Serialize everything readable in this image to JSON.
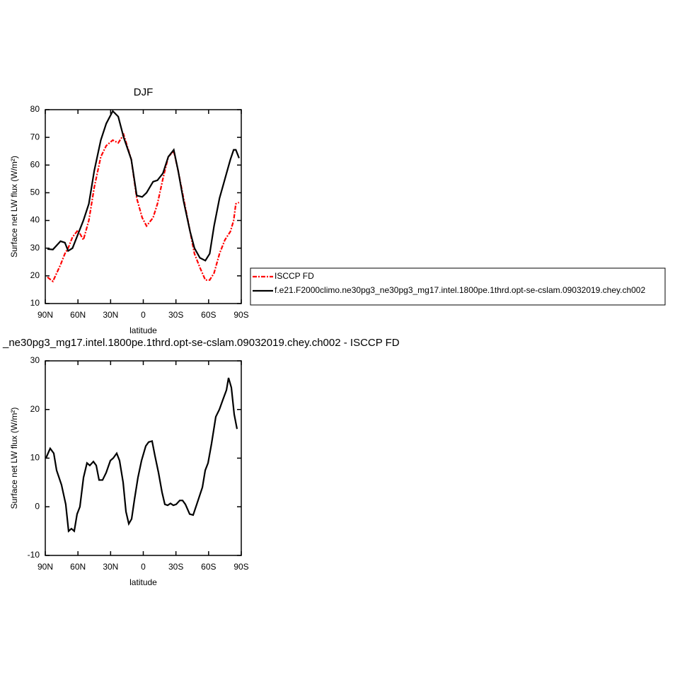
{
  "chart_data": [
    {
      "type": "line",
      "title": "DJF",
      "xlabel": "latitude",
      "ylabel": "Surface net LW flux (W/m²)",
      "xlim": [
        90,
        -90
      ],
      "ylim": [
        10,
        80
      ],
      "xticks": [
        {
          "value": 90,
          "label": "90N"
        },
        {
          "value": 60,
          "label": "60N"
        },
        {
          "value": 30,
          "label": "30N"
        },
        0,
        {
          "value": -30,
          "label": "30S"
        },
        {
          "value": -60,
          "label": "60S"
        },
        {
          "value": -90,
          "label": "90S"
        }
      ],
      "yticks": [
        10,
        20,
        30,
        40,
        50,
        60,
        70,
        80
      ],
      "legend": "right",
      "x": [
        88,
        83,
        76,
        72,
        69,
        65,
        60,
        55,
        50,
        45,
        39,
        34,
        28,
        23,
        18,
        11,
        6,
        1,
        -3,
        -9,
        -13,
        -18,
        -23,
        -28,
        -32,
        -37,
        -43,
        -47,
        -52,
        -57,
        -61,
        -65,
        -70,
        -75,
        -80,
        -83,
        -85,
        -88
      ],
      "series": [
        {
          "name": "ISCCP FD",
          "color": "#ff0000",
          "style": "dashed",
          "values": [
            19.5,
            18,
            24,
            28,
            30,
            34,
            36.5,
            33,
            40,
            52,
            63,
            67,
            69,
            68,
            71,
            62,
            48,
            41,
            38,
            41,
            46,
            55,
            63,
            65,
            58,
            48,
            36,
            28,
            23,
            18.5,
            18.5,
            21,
            28,
            33,
            36,
            40,
            46,
            46.5
          ]
        },
        {
          "name": "f.e21.F2000climo.ne30pg3_ne30pg3_mg17.intel.1800pe.1thrd.opt-se-cslam.09032019.chey.ch002",
          "color": "#000000",
          "style": "solid",
          "values": [
            29.7,
            29.5,
            32.5,
            32,
            29,
            30,
            35,
            40,
            46,
            58,
            69,
            75,
            79.5,
            77.5,
            70,
            62,
            49,
            48.5,
            50,
            54,
            54.5,
            57,
            63,
            65.5,
            58,
            47,
            36,
            30,
            26.5,
            25.5,
            28,
            38,
            48,
            55,
            62,
            65.5,
            65.5,
            62.5
          ]
        }
      ]
    },
    {
      "type": "line",
      "title": "_ne30pg3_mg17.intel.1800pe.1thrd.opt-se-cslam.09032019.chey.ch002 - ISCCP FD",
      "xlabel": "latitude",
      "ylabel": "Surface net LW flux (W/m²)",
      "xlim": [
        90,
        -90
      ],
      "ylim": [
        -10,
        30
      ],
      "xticks": [
        {
          "value": 90,
          "label": "90N"
        },
        {
          "value": 60,
          "label": "60N"
        },
        {
          "value": 30,
          "label": "30N"
        },
        0,
        {
          "value": -30,
          "label": "30S"
        },
        {
          "value": -60,
          "label": "60S"
        },
        {
          "value": -90,
          "label": "90S"
        }
      ],
      "yticks": [
        -10,
        0,
        10,
        20,
        30
      ],
      "x": [
        89.4,
        85.5,
        82.2,
        79.6,
        75.1,
        71.2,
        68.6,
        66,
        63.4,
        60.8,
        58.2,
        54.9,
        51.7,
        49.1,
        45.8,
        43.2,
        40.6,
        37.4,
        34.1,
        30.2,
        27.6,
        24.4,
        21.8,
        18.5,
        15.9,
        13.3,
        10.7,
        8.1,
        4.9,
        1.6,
        -2.3,
        -4.9,
        -8.1,
        -10.7,
        -14,
        -17.2,
        -19.8,
        -22.4,
        -25,
        -27.6,
        -30.2,
        -33.5,
        -36.1,
        -38.7,
        -42.6,
        -45.8,
        -49.1,
        -54.3,
        -56.9,
        -59.5,
        -62.7,
        -66.6,
        -69.9,
        -73.1,
        -76.4,
        -78.3,
        -80.9,
        -83.5,
        -86.1
      ],
      "color": "#000000",
      "values": [
        10,
        12,
        11,
        7.5,
        4.5,
        0.5,
        -5,
        -4.5,
        -5,
        -1.5,
        0,
        6,
        9,
        8.5,
        9.3,
        8.5,
        5.5,
        5.5,
        7,
        9.5,
        10,
        11,
        9.5,
        5,
        -1,
        -3.5,
        -2.5,
        1.5,
        6,
        9.5,
        12.5,
        13.3,
        13.5,
        10.5,
        7,
        3,
        0.5,
        0.3,
        0.7,
        0.3,
        0.5,
        1.3,
        1.3,
        0.5,
        -1.5,
        -1.7,
        0.5,
        4,
        7.5,
        9,
        13,
        18.5,
        20,
        22,
        24,
        26.5,
        24.5,
        19,
        16
      ]
    }
  ]
}
